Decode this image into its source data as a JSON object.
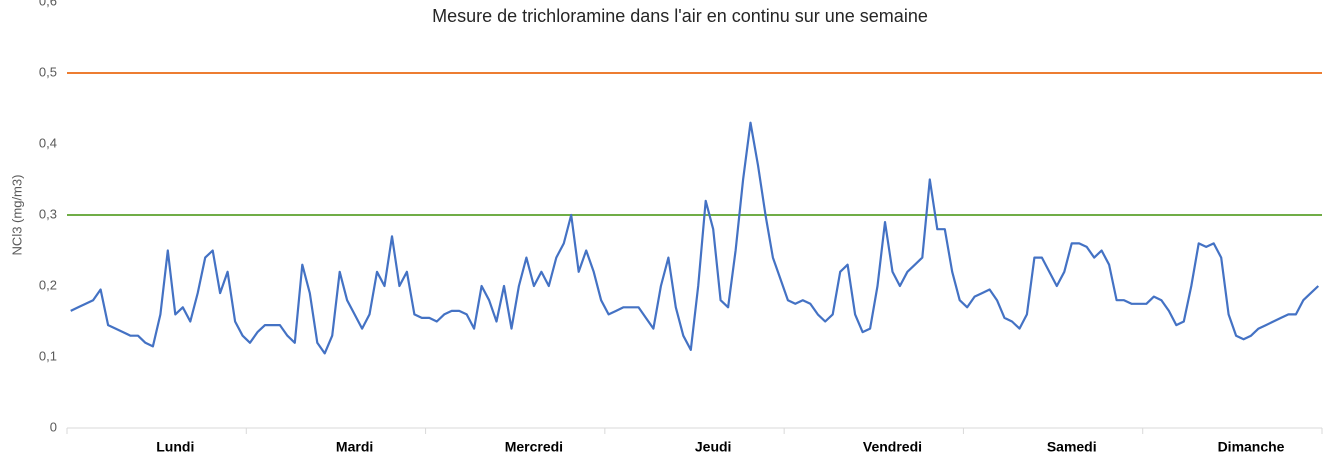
{
  "chart_data": {
    "type": "line",
    "title": "Mesure de trichloramine dans l'air en continu sur une semaine",
    "y_label": "NCl3 (mg/m3)",
    "categories": [
      null,
      null,
      null,
      null,
      null,
      null,
      null,
      null,
      null,
      null,
      null,
      null,
      null,
      null,
      "Lundi",
      null,
      null,
      null,
      null,
      null,
      null,
      null,
      null,
      null,
      null,
      null,
      null,
      null,
      null,
      null,
      null,
      null,
      null,
      null,
      null,
      null,
      null,
      null,
      "Mardi",
      null,
      null,
      null,
      null,
      null,
      null,
      null,
      null,
      null,
      null,
      null,
      null,
      null,
      null,
      null,
      null,
      null,
      null,
      null,
      null,
      null,
      null,
      null,
      "Mercredi",
      null,
      null,
      null,
      null,
      null,
      null,
      null,
      null,
      null,
      null,
      null,
      null,
      null,
      null,
      null,
      null,
      null,
      null,
      null,
      null,
      null,
      null,
      null,
      "Jeudi",
      null,
      null,
      null,
      null,
      null,
      null,
      null,
      null,
      null,
      null,
      null,
      null,
      null,
      null,
      null,
      null,
      null,
      null,
      null,
      null,
      null,
      null,
      null,
      "Vendredi",
      null,
      null,
      null,
      null,
      null,
      null,
      null,
      null,
      null,
      null,
      null,
      null,
      null,
      null,
      null,
      null,
      null,
      null,
      null,
      null,
      null,
      null,
      null,
      "Samedi",
      null,
      null,
      null,
      null,
      null,
      null,
      null,
      null,
      null,
      null,
      null,
      null,
      null,
      null,
      null,
      null,
      null,
      null,
      null,
      null,
      null,
      null,
      null,
      "Dimanche",
      null,
      null,
      null,
      null,
      null,
      null,
      null,
      null,
      null
    ],
    "series": [
      {
        "color": "#4472c4",
        "values": [
          0.165,
          0.17,
          0.175,
          0.18,
          0.195,
          0.145,
          0.14,
          0.135,
          0.13,
          0.13,
          0.12,
          0.115,
          0.16,
          0.25,
          0.16,
          0.17,
          0.15,
          0.19,
          0.24,
          0.25,
          0.19,
          0.22,
          0.15,
          0.13,
          0.12,
          0.135,
          0.145,
          0.145,
          0.145,
          0.13,
          0.12,
          0.23,
          0.19,
          0.12,
          0.105,
          0.13,
          0.22,
          0.18,
          0.16,
          0.14,
          0.16,
          0.22,
          0.2,
          0.27,
          0.2,
          0.22,
          0.16,
          0.155,
          0.155,
          0.15,
          0.16,
          0.165,
          0.165,
          0.16,
          0.14,
          0.2,
          0.18,
          0.15,
          0.2,
          0.14,
          0.2,
          0.24,
          0.2,
          0.22,
          0.2,
          0.24,
          0.26,
          0.3,
          0.22,
          0.25,
          0.22,
          0.18,
          0.16,
          0.165,
          0.17,
          0.17,
          0.17,
          0.155,
          0.14,
          0.2,
          0.24,
          0.17,
          0.13,
          0.11,
          0.2,
          0.32,
          0.28,
          0.18,
          0.17,
          0.25,
          0.35,
          0.43,
          0.37,
          0.3,
          0.24,
          0.21,
          0.18,
          0.175,
          0.18,
          0.175,
          0.16,
          0.15,
          0.16,
          0.22,
          0.23,
          0.16,
          0.135,
          0.14,
          0.2,
          0.29,
          0.22,
          0.2,
          0.22,
          0.23,
          0.24,
          0.35,
          0.28,
          0.28,
          0.22,
          0.18,
          0.17,
          0.185,
          0.19,
          0.195,
          0.18,
          0.155,
          0.15,
          0.14,
          0.16,
          0.24,
          0.24,
          0.22,
          0.2,
          0.22,
          0.26,
          0.26,
          0.255,
          0.24,
          0.25,
          0.23,
          0.18,
          0.18,
          0.175,
          0.175,
          0.175,
          0.185,
          0.18,
          0.165,
          0.145,
          0.15,
          0.2,
          0.26,
          0.255,
          0.26,
          0.24,
          0.16,
          0.13,
          0.125,
          0.13,
          0.14,
          0.145,
          0.15,
          0.155,
          0.16,
          0.16,
          0.18,
          0.19,
          0.2
        ]
      }
    ],
    "reference_lines": [
      {
        "value": 0.5,
        "color": "#ed7d31"
      },
      {
        "value": 0.3,
        "color": "#70ad47"
      }
    ],
    "ylim": [
      0,
      0.6
    ],
    "yticks": [
      0,
      {
        "value": 0.1,
        "label": "0,1"
      },
      {
        "value": 0.2,
        "label": "0,2"
      },
      {
        "value": 0.3,
        "label": "0,3"
      },
      {
        "value": 0.4,
        "label": "0,4"
      },
      {
        "value": 0.5,
        "label": "0,5"
      },
      {
        "value": 0.6,
        "label": "0,6"
      }
    ],
    "grid": false
  }
}
